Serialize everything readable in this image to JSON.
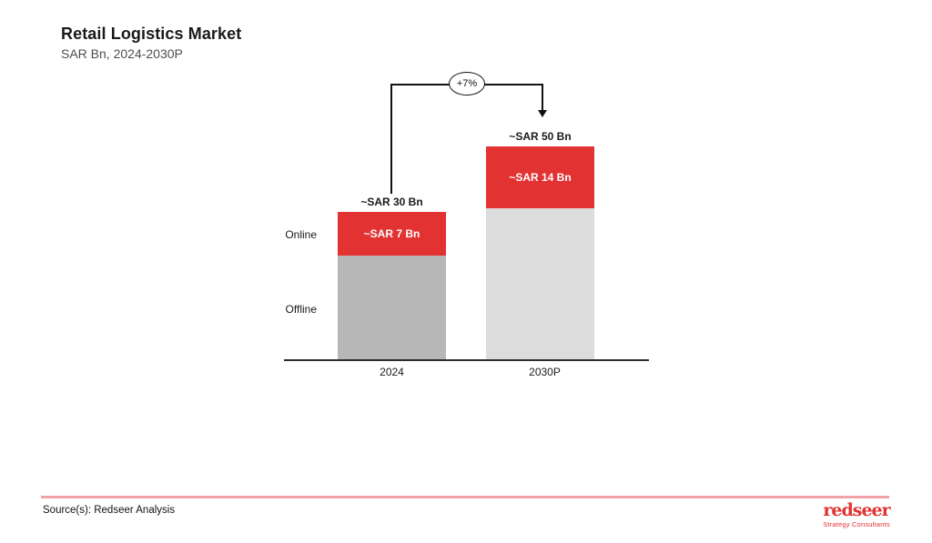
{
  "header": {
    "title": "Retail Logistics Market",
    "subtitle": "SAR Bn, 2024-2030P"
  },
  "chart_data": {
    "type": "bar",
    "stacked": true,
    "title": "Retail Logistics Market",
    "units": "SAR Bn",
    "categories": [
      "2024",
      "2030P"
    ],
    "series": [
      {
        "name": "Online",
        "values": [
          7,
          14
        ],
        "color": "#e23231",
        "segment_labels": [
          "~SAR 7 Bn",
          "~SAR 14 Bn"
        ]
      },
      {
        "name": "Offline",
        "values": [
          23,
          36
        ],
        "colors": [
          "#b7b7b7",
          "#dcdcdc"
        ],
        "segment_labels": [
          "",
          ""
        ]
      }
    ],
    "totals": [
      30,
      50
    ],
    "total_labels": [
      "~SAR 30 Bn",
      "~SAR 50 Bn"
    ],
    "cagr_label": "+7%",
    "legend_position": "left-of-first-bar",
    "grid": false,
    "ylim": [
      0,
      55
    ],
    "axis_color": "#2b2b2b"
  },
  "footer": {
    "source": "Source(s): Redseer Analysis",
    "divider_color": "#f2a3a6",
    "logo_wordmark": "redseer",
    "logo_tagline": "Strategy Consultants",
    "logo_color": "#e03231"
  }
}
